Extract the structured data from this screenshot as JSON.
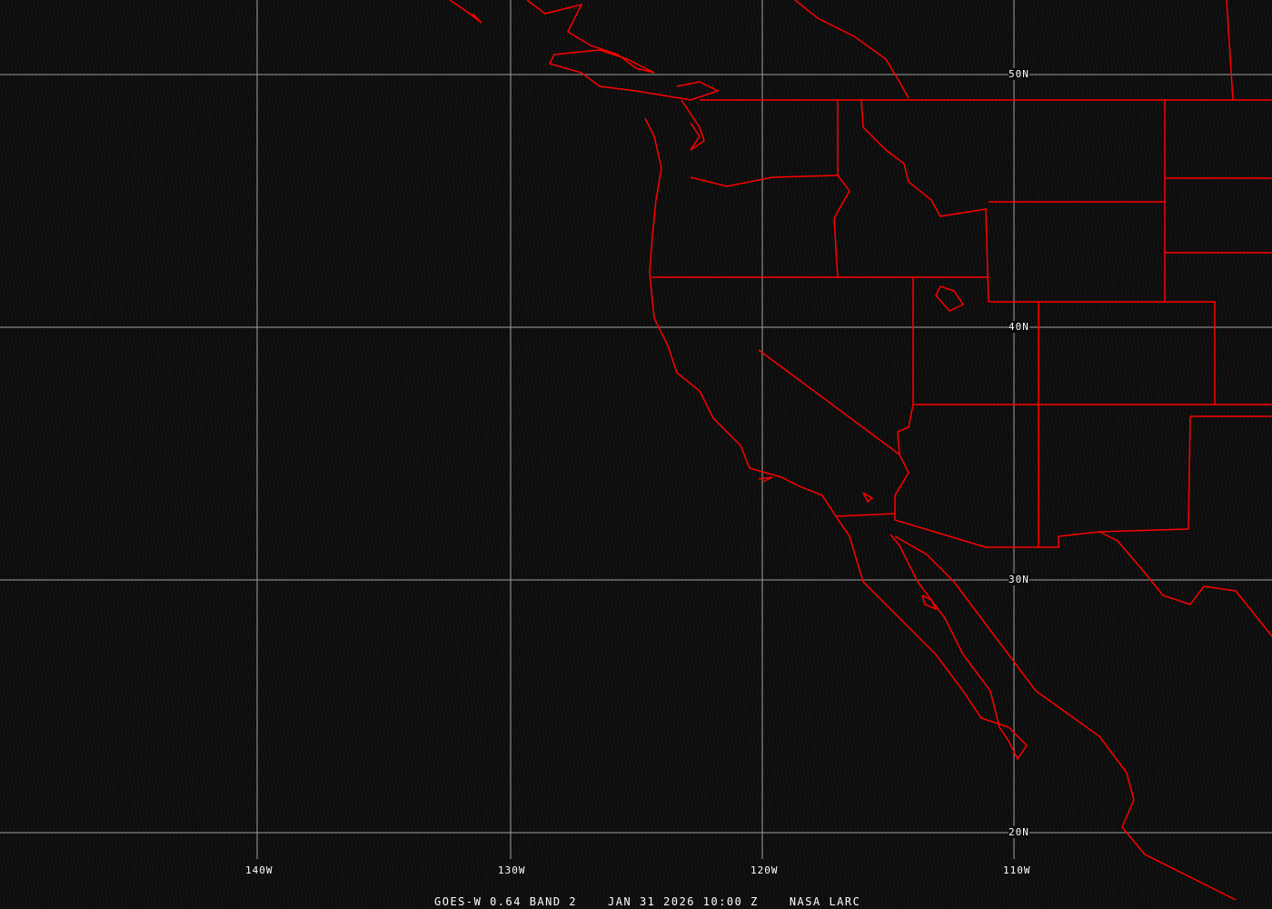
{
  "map": {
    "grid_color": "#a0a0a0",
    "border_color": "#ff0000",
    "longitude_labels": [
      "140W",
      "130W",
      "120W",
      "110W"
    ],
    "latitude_labels": [
      "50N",
      "40N",
      "30N",
      "20N"
    ]
  },
  "caption": {
    "product": "GOES-W 0.64 BAND 2",
    "datetime": "JAN 31 2026 10:00 Z",
    "source": "NASA LARC"
  }
}
